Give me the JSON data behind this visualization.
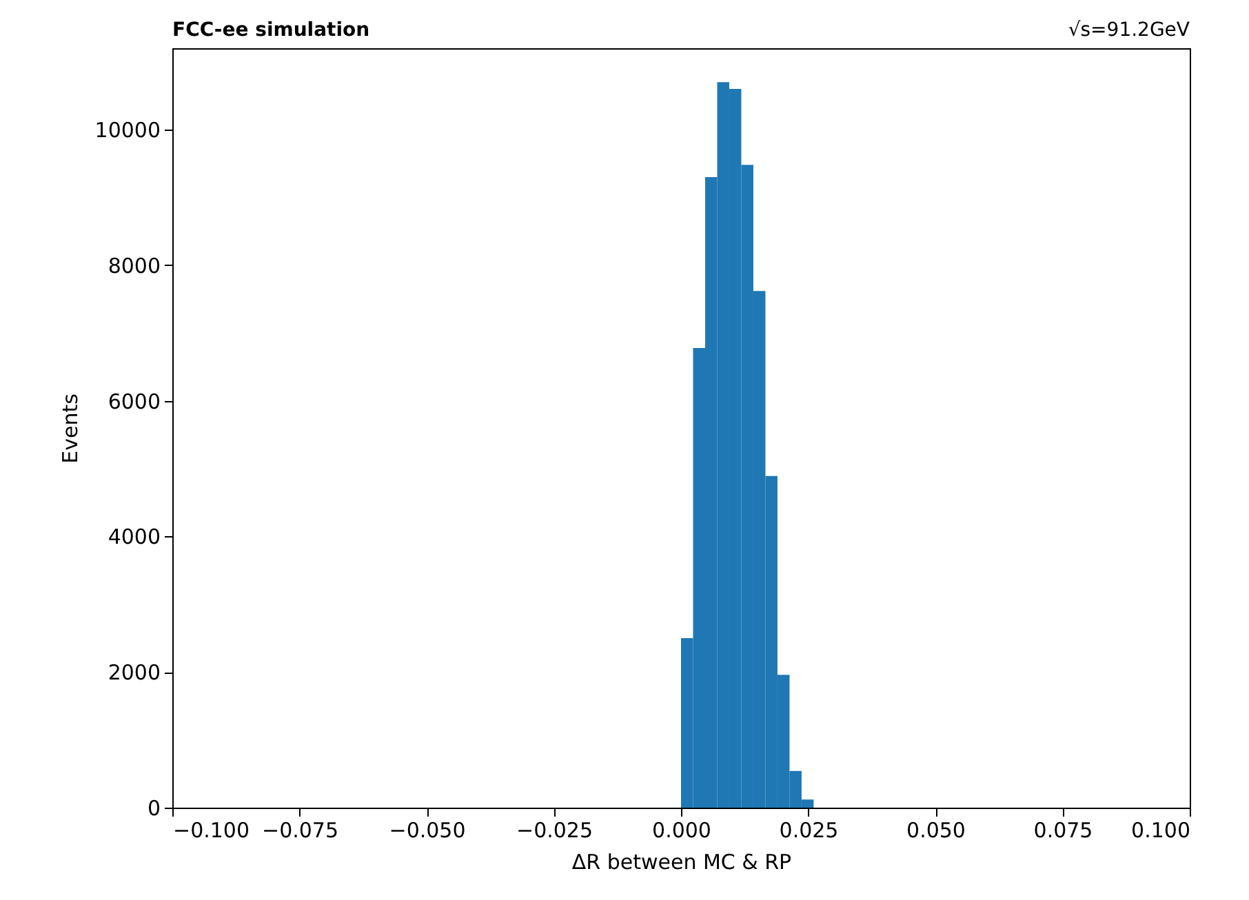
{
  "chart_data": {
    "type": "histogram",
    "title": "FCC-ee simulation",
    "annotations": [
      "√s=91.2GeV"
    ],
    "xlabel": "ΔR between MC & RP",
    "ylabel": "Events",
    "bins": [
      0,
      0.00237,
      0.00474,
      0.00711,
      0.00948,
      0.01185,
      0.01422,
      0.01659,
      0.01896,
      0.02133,
      0.0237,
      0.02607
    ],
    "values": [
      2500,
      6780,
      9300,
      10700,
      10600,
      9480,
      7620,
      4890,
      1960,
      540,
      120
    ],
    "color": "#1f77b4",
    "xlim": [
      -0.1,
      0.1
    ],
    "xticks": [
      {
        "value": -0.1,
        "label": "−0.100"
      },
      {
        "value": -0.075,
        "label": "−0.075"
      },
      {
        "value": -0.05,
        "label": "−0.050"
      },
      {
        "value": -0.025,
        "label": "−0.025"
      },
      {
        "value": 0,
        "label": "0.000"
      },
      {
        "value": 0.025,
        "label": "0.025"
      },
      {
        "value": 0.05,
        "label": "0.050"
      },
      {
        "value": 0.075,
        "label": "0.075"
      },
      {
        "value": 0.1,
        "label": "0.100"
      }
    ],
    "ylim": [
      0,
      11200
    ],
    "yticks": [
      0,
      2000,
      4000,
      6000,
      8000,
      10000
    ],
    "grid": false
  }
}
